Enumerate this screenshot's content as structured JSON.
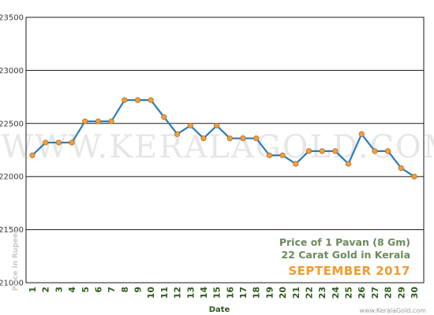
{
  "chart_data": {
    "type": "line",
    "xlabel": "Date",
    "ylabel": "Price in Rupees",
    "title_lines": [
      "Price of 1 Pavan (8 Gm)",
      "22 Carat Gold in Kerala"
    ],
    "subtitle": "SEPTEMBER 2017",
    "watermark": "WWW.KERALAGOLD.COM",
    "footer": "www.KeralaGold.com",
    "ylim": [
      21000,
      23500
    ],
    "yticks": [
      21000,
      21500,
      22000,
      22500,
      23000,
      23500
    ],
    "grid": true,
    "x": [
      "1",
      "2",
      "3",
      "4",
      "5",
      "6",
      "7",
      "8",
      "9",
      "10",
      "11",
      "12",
      "13",
      "14",
      "15",
      "16",
      "17",
      "18",
      "19",
      "20",
      "21",
      "22",
      "23",
      "24",
      "25",
      "26",
      "27",
      "28",
      "29",
      "30"
    ],
    "series": [
      {
        "values": [
          22200,
          22320,
          22320,
          22320,
          22520,
          22520,
          22520,
          22720,
          22720,
          22720,
          22560,
          22400,
          22480,
          22360,
          22480,
          22360,
          22360,
          22360,
          22200,
          22200,
          22120,
          22240,
          22240,
          22240,
          22120,
          22400,
          22240,
          22240,
          22080,
          22000
        ],
        "line_color": "#2a7db8",
        "marker_color": "#f0a040"
      }
    ]
  },
  "colors": {
    "frame": "#1a1a1a",
    "grid": "#1a1a1a"
  }
}
